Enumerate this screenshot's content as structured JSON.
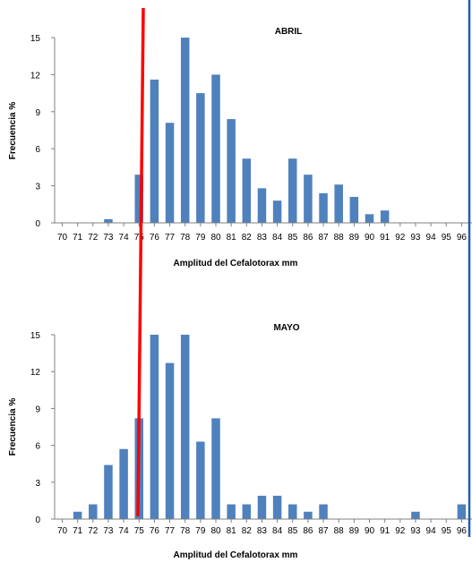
{
  "colors": {
    "bar": "#4F81BD",
    "axis": "#808080",
    "text": "#000000",
    "marker_line": "#FF0000",
    "right_border": "#1F5FAD",
    "background": "#FFFFFF"
  },
  "chart_data": [
    {
      "type": "bar",
      "title": "ABRIL",
      "xlabel": "Amplitud  del Cefalotorax mm",
      "ylabel": "Frecuencia %",
      "ylim": [
        0,
        15
      ],
      "yticks": [
        0,
        3,
        6,
        9,
        12,
        15
      ],
      "grid": false,
      "categories": [
        "70",
        "71",
        "72",
        "73",
        "74",
        "75",
        "76",
        "77",
        "78",
        "79",
        "80",
        "81",
        "82",
        "83",
        "84",
        "85",
        "86",
        "87",
        "88",
        "89",
        "90",
        "91",
        "92",
        "93",
        "94",
        "95",
        "96"
      ],
      "tick_labels": [
        "70",
        "71",
        "72",
        "73",
        "74",
        "75",
        "76",
        "77",
        "78",
        "79",
        "80",
        "81",
        "82",
        "83",
        "84",
        "85",
        "86",
        "87",
        "88",
        "89",
        "90",
        "91",
        "92",
        "93",
        "94",
        "95",
        "96"
      ],
      "values": [
        0,
        0,
        0,
        0.3,
        0,
        3.9,
        11.6,
        8.1,
        15,
        10.5,
        12,
        8.4,
        5.2,
        2.8,
        1.8,
        5.2,
        3.9,
        2.4,
        3.1,
        2.1,
        0.7,
        1.0,
        0,
        0,
        0,
        0,
        0
      ]
    },
    {
      "type": "bar",
      "title": "MAYO",
      "xlabel": "Amplitud  del Cefalotorax mm",
      "ylabel": "Frecuencia %",
      "ylim": [
        0,
        15
      ],
      "yticks": [
        0,
        3,
        6,
        9,
        12,
        15
      ],
      "grid": false,
      "categories": [
        "70",
        "71",
        "72",
        "73",
        "74",
        "75",
        "76",
        "77",
        "78",
        "79",
        "80",
        "81",
        "82",
        "83",
        "84",
        "85",
        "86",
        "87",
        "88",
        "89",
        "90",
        "91",
        "92",
        "93",
        "94",
        "95",
        "96"
      ],
      "tick_labels": [
        "70",
        "71",
        "72",
        "73",
        "74",
        "75",
        "76",
        "77",
        "78",
        "79",
        "80",
        "81",
        "82",
        "83",
        "84",
        "85",
        "86",
        "87",
        "88",
        "89",
        "90",
        "91",
        "92",
        "93",
        "94",
        "95",
        "96"
      ],
      "values": [
        0,
        0.6,
        1.2,
        4.4,
        5.7,
        8.2,
        15,
        12.7,
        15,
        6.3,
        8.2,
        1.2,
        1.2,
        1.9,
        1.9,
        1.2,
        0.6,
        1.2,
        0,
        0,
        0,
        0,
        0,
        0.6,
        0,
        0,
        1.2
      ]
    }
  ]
}
